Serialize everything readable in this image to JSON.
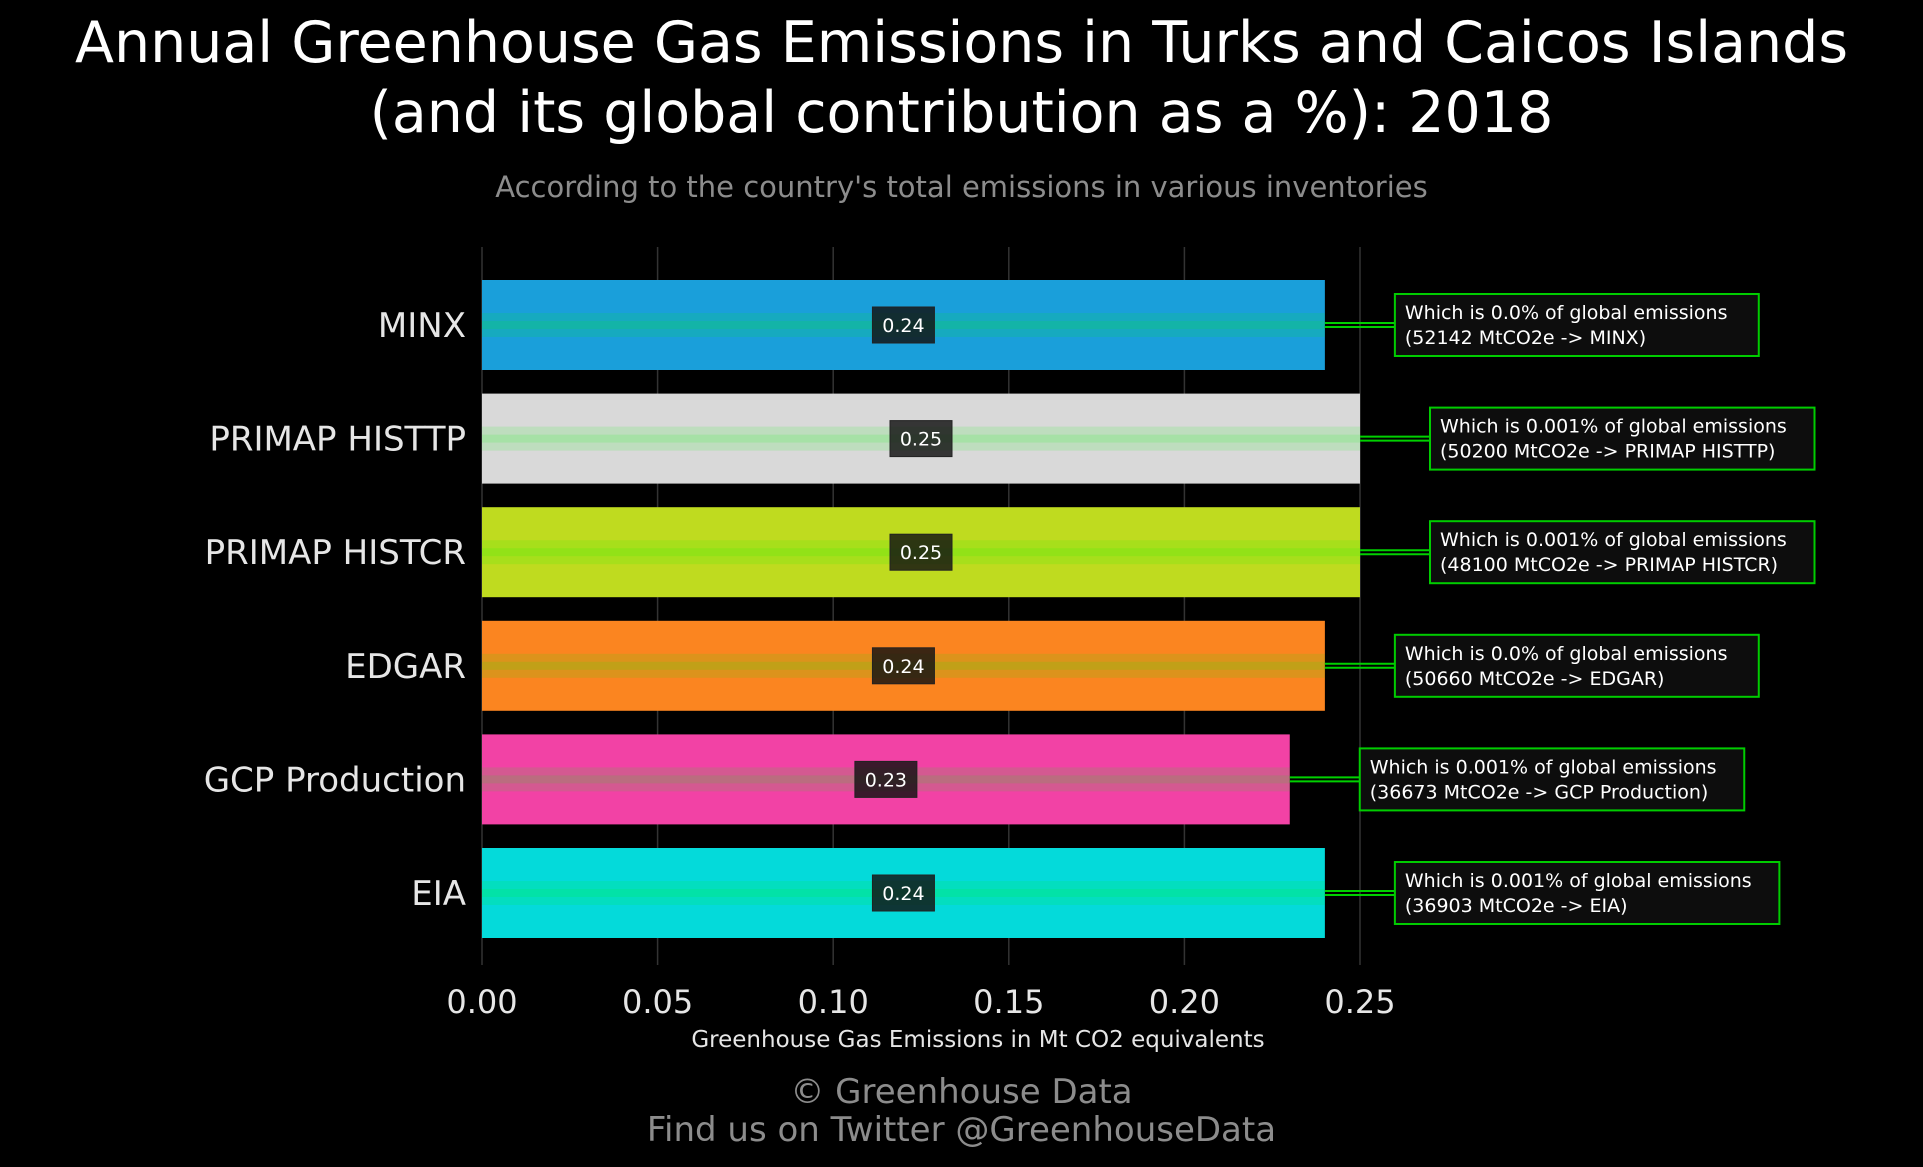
{
  "title_line1": "Annual Greenhouse Gas Emissions in Turks and Caicos Islands",
  "title_line2": "(and its global contribution as a %): 2018",
  "subtitle": "According to the country's total emissions in various inventories",
  "footer_line1": "© Greenhouse Data",
  "footer_line2": "Find us on Twitter @GreenhouseData",
  "chart_data": {
    "type": "bar",
    "orientation": "horizontal",
    "title": "Annual Greenhouse Gas Emissions in Turks and Caicos Islands (and its global contribution as a %): 2018",
    "subtitle": "According to the country's total emissions in various inventories",
    "xlabel": "Greenhouse Gas Emissions in Mt CO2 equivalents",
    "ylabel": "",
    "xlim": [
      0,
      0.25
    ],
    "xticks": [
      "0.00",
      "0.05",
      "0.10",
      "0.15",
      "0.20",
      "0.25"
    ],
    "grid": true,
    "categories": [
      "MINX",
      "PRIMAP HISTTP",
      "PRIMAP HISTCR",
      "EDGAR",
      "GCP Production",
      "EIA"
    ],
    "values": [
      0.24,
      0.25,
      0.25,
      0.24,
      0.23,
      0.24
    ],
    "value_labels": [
      "0.24",
      "0.25",
      "0.25",
      "0.24",
      "0.23",
      "0.24"
    ],
    "colors": [
      "#1a9fda",
      "#d9d9d9",
      "#bfdb1f",
      "#fb8520",
      "#f242a5",
      "#04dada"
    ],
    "glow_color": "#00ff00",
    "annotations": [
      {
        "line1": "Which is 0.0% of global emissions",
        "line2": "(52142 MtCO2e -> MINX)"
      },
      {
        "line1": "Which is 0.001% of global emissions",
        "line2": "(50200 MtCO2e -> PRIMAP HISTTP)"
      },
      {
        "line1": "Which is 0.001% of global emissions",
        "line2": "(48100 MtCO2e -> PRIMAP HISTCR)"
      },
      {
        "line1": "Which is 0.0% of global emissions",
        "line2": "(50660 MtCO2e -> EDGAR)"
      },
      {
        "line1": "Which is 0.001% of global emissions",
        "line2": "(36673 MtCO2e -> GCP Production)"
      },
      {
        "line1": "Which is 0.001% of global emissions",
        "line2": "(36903 MtCO2e -> EIA)"
      }
    ]
  }
}
